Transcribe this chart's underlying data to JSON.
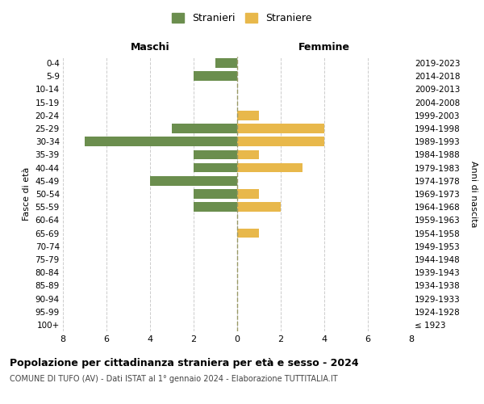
{
  "age_groups": [
    "100+",
    "95-99",
    "90-94",
    "85-89",
    "80-84",
    "75-79",
    "70-74",
    "65-69",
    "60-64",
    "55-59",
    "50-54",
    "45-49",
    "40-44",
    "35-39",
    "30-34",
    "25-29",
    "20-24",
    "15-19",
    "10-14",
    "5-9",
    "0-4"
  ],
  "birth_years": [
    "≤ 1923",
    "1924-1928",
    "1929-1933",
    "1934-1938",
    "1939-1943",
    "1944-1948",
    "1949-1953",
    "1954-1958",
    "1959-1963",
    "1964-1968",
    "1969-1973",
    "1974-1978",
    "1979-1983",
    "1984-1988",
    "1989-1993",
    "1994-1998",
    "1999-2003",
    "2004-2008",
    "2009-2013",
    "2014-2018",
    "2019-2023"
  ],
  "maschi": [
    0,
    0,
    0,
    0,
    0,
    0,
    0,
    0,
    0,
    2,
    2,
    4,
    2,
    2,
    7,
    3,
    0,
    0,
    0,
    2,
    1
  ],
  "femmine": [
    0,
    0,
    0,
    0,
    0,
    0,
    0,
    1,
    0,
    2,
    1,
    0,
    3,
    1,
    4,
    4,
    1,
    0,
    0,
    0,
    0
  ],
  "color_maschi": "#6b8e4e",
  "color_femmine": "#e8b84b",
  "title": "Popolazione per cittadinanza straniera per età e sesso - 2024",
  "subtitle": "COMUNE DI TUFO (AV) - Dati ISTAT al 1° gennaio 2024 - Elaborazione TUTTITALIA.IT",
  "legend_maschi": "Stranieri",
  "legend_femmine": "Straniere",
  "label_left": "Maschi",
  "label_right": "Femmine",
  "ylabel_left": "Fasce di età",
  "ylabel_right": "Anni di nascita",
  "xlim": 8,
  "background_color": "#ffffff"
}
